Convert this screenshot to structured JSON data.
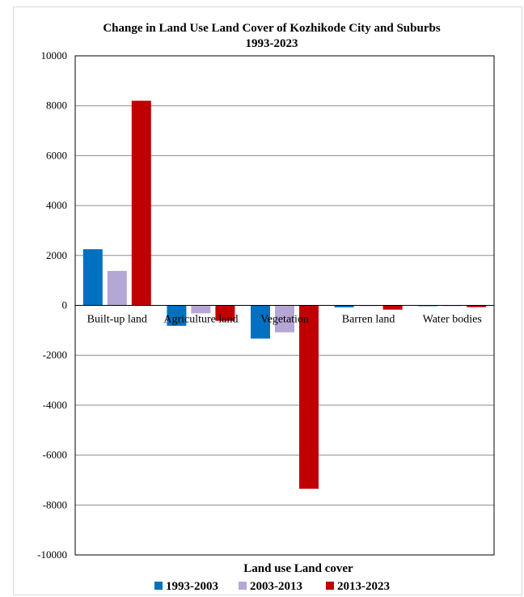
{
  "chart_data": {
    "type": "bar",
    "title": "Change in Land Use Land Cover of Kozhikode City and Suburbs",
    "subtitle": "1993-2023",
    "xlabel": "Land use Land cover",
    "ylabel": "",
    "ylim": [
      -10000,
      10000
    ],
    "yticks": [
      "10000",
      "8000",
      "6000",
      "4000",
      "2000",
      "0",
      "-2000",
      "-4000",
      "-6000",
      "-8000",
      "-10000"
    ],
    "grid": true,
    "legend_position": "bottom",
    "categories": [
      "Built-up land",
      "Agriculture land",
      "Vegetation",
      "Barren land",
      "Water bodies"
    ],
    "series": [
      {
        "name": "1993-2003",
        "color": "#0070c0",
        "values": [
          2250,
          -820,
          -1330,
          -80,
          -30
        ]
      },
      {
        "name": "2003-2013",
        "color": "#b4a7d6",
        "values": [
          1380,
          -320,
          -1080,
          -20,
          -15
        ]
      },
      {
        "name": "2013-2023",
        "color": "#c00000",
        "values": [
          8200,
          -620,
          -7350,
          -170,
          -70
        ]
      }
    ]
  }
}
